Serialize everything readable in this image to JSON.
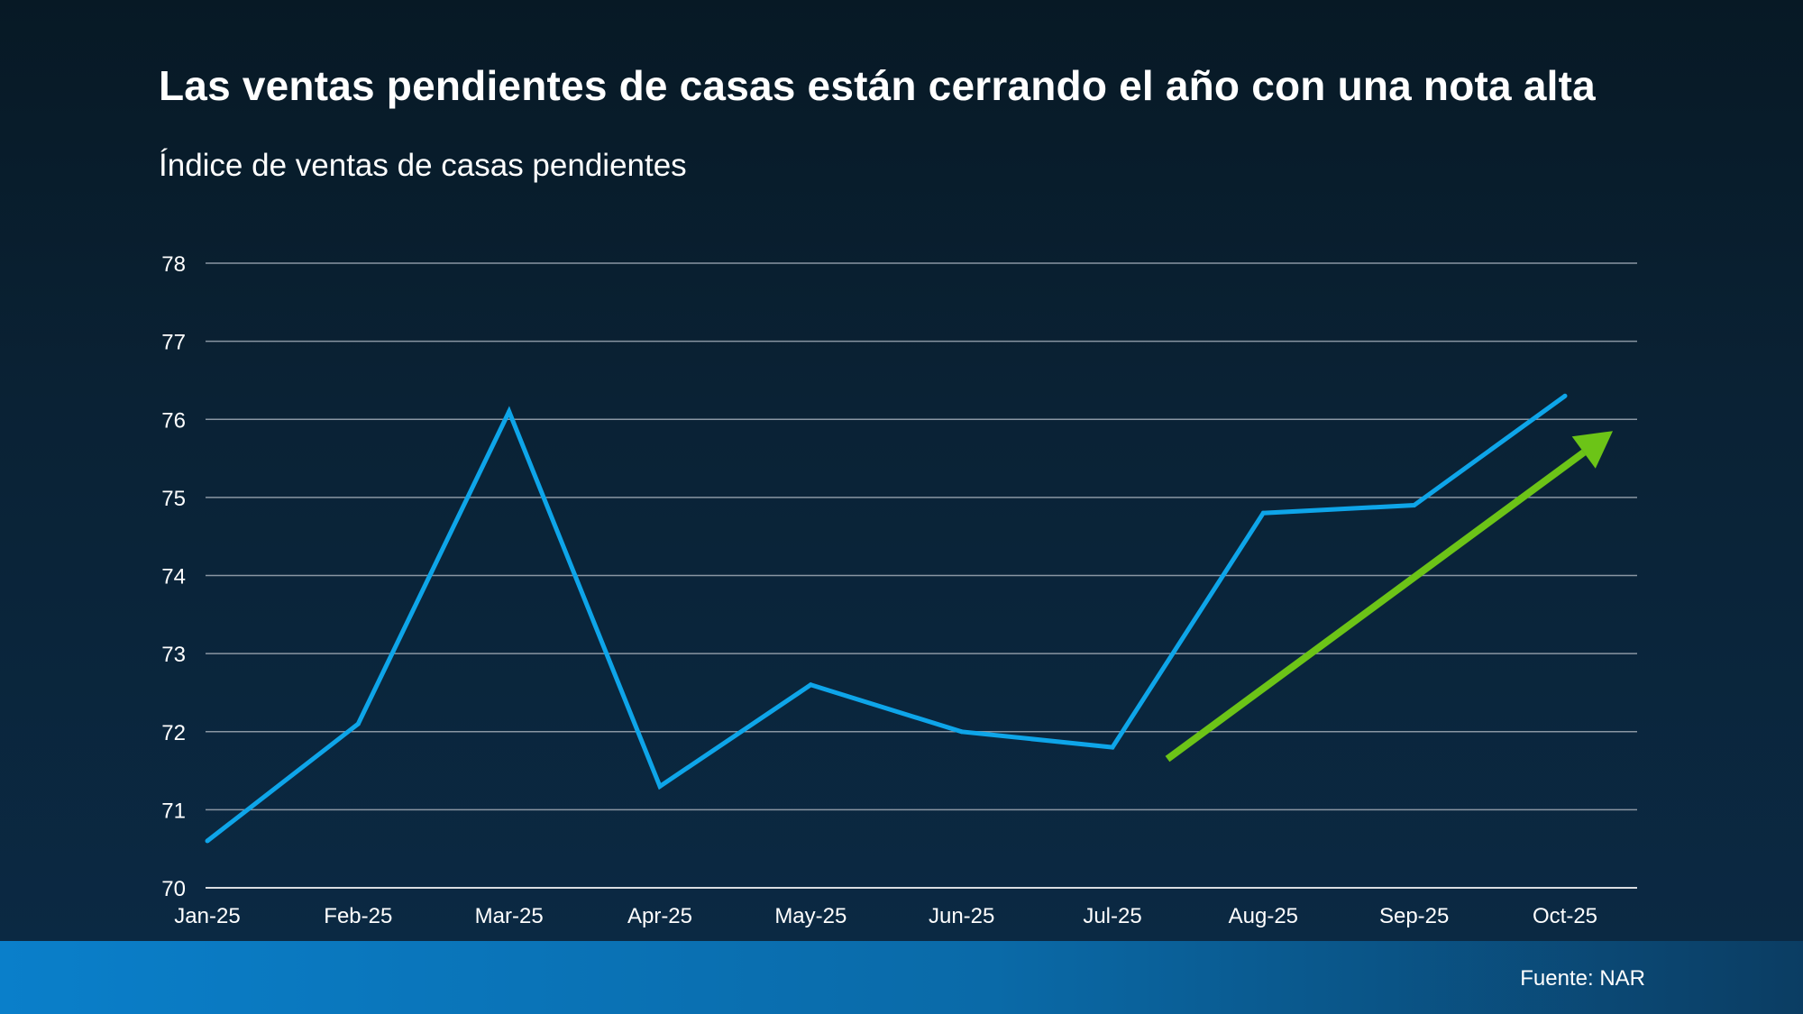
{
  "chart_data": {
    "type": "line",
    "title": "Las ventas pendientes de casas están cerrando el año con una nota alta",
    "subtitle": "Índice de ventas de casas pendientes",
    "categories": [
      "Jan-25",
      "Feb-25",
      "Mar-25",
      "Apr-25",
      "May-25",
      "Jun-25",
      "Jul-25",
      "Aug-25",
      "Sep-25",
      "Oct-25"
    ],
    "series": [
      {
        "values": [
          70.6,
          72.1,
          76.1,
          71.3,
          72.6,
          72.0,
          71.8,
          74.8,
          74.9,
          76.3
        ],
        "color": "#0ea5e9"
      }
    ],
    "yticks": [
      70,
      71,
      72,
      73,
      74,
      75,
      76,
      77,
      78
    ],
    "ylim": [
      70,
      78
    ],
    "grid": true,
    "annotation": {
      "type": "trend-arrow",
      "color": "#6cc417",
      "from_y": 71.65,
      "to_y": 75.85
    }
  },
  "footer": {
    "source": "Fuente: NAR"
  }
}
